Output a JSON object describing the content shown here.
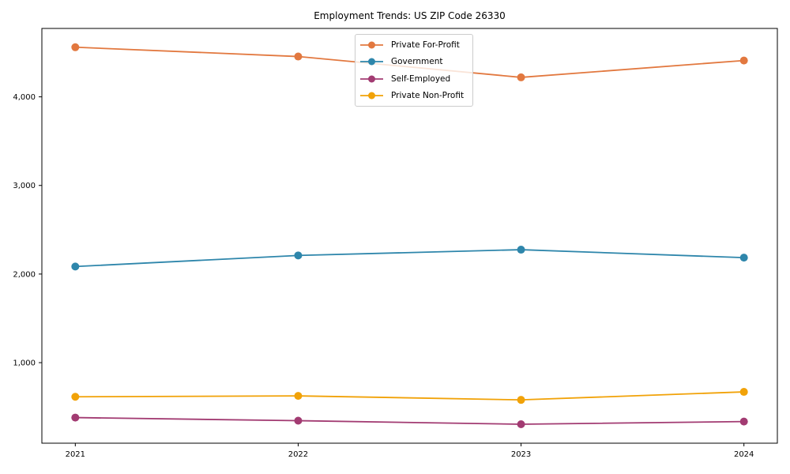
{
  "title": "Employment Trends: US ZIP Code 26330",
  "colors": {
    "private_for_profit": "#E2783F",
    "government": "#2E86AB",
    "self_employed": "#A23B72",
    "private_non_profit": "#F1A208",
    "spine": "#000000",
    "legend_border": "#cccccc",
    "background": "#ffffff"
  },
  "chart_data": {
    "type": "line",
    "title": "Employment Trends: US ZIP Code 26330",
    "xlabel": "",
    "ylabel": "",
    "x": [
      2021,
      2022,
      2023,
      2024
    ],
    "categories": [
      "2021",
      "2022",
      "2023",
      "2024"
    ],
    "series": [
      {
        "name": "Private For-Profit",
        "color": "#E2783F",
        "values": [
          4560,
          4455,
          4220,
          4410
        ]
      },
      {
        "name": "Government",
        "color": "#2E86AB",
        "values": [
          2085,
          2210,
          2275,
          2185
        ]
      },
      {
        "name": "Self-Employed",
        "color": "#A23B72",
        "values": [
          380,
          345,
          305,
          335
        ]
      },
      {
        "name": "Private Non-Profit",
        "color": "#F1A208",
        "values": [
          615,
          625,
          580,
          670
        ]
      }
    ],
    "xlim": [
      2020.85,
      2024.15
    ],
    "ylim": [
      91,
      4772
    ],
    "xticks": {
      "values": [
        2021,
        2022,
        2023,
        2024
      ],
      "labels": [
        "2021",
        "2022",
        "2023",
        "2024"
      ]
    },
    "yticks": {
      "values": [
        1000,
        2000,
        3000,
        4000
      ],
      "labels": [
        "1,000",
        "2,000",
        "3,000",
        "4,000"
      ]
    },
    "grid": false,
    "legend_position": "upper center",
    "marker": "circle",
    "marker_radius": 5,
    "line_width": 1.8
  }
}
